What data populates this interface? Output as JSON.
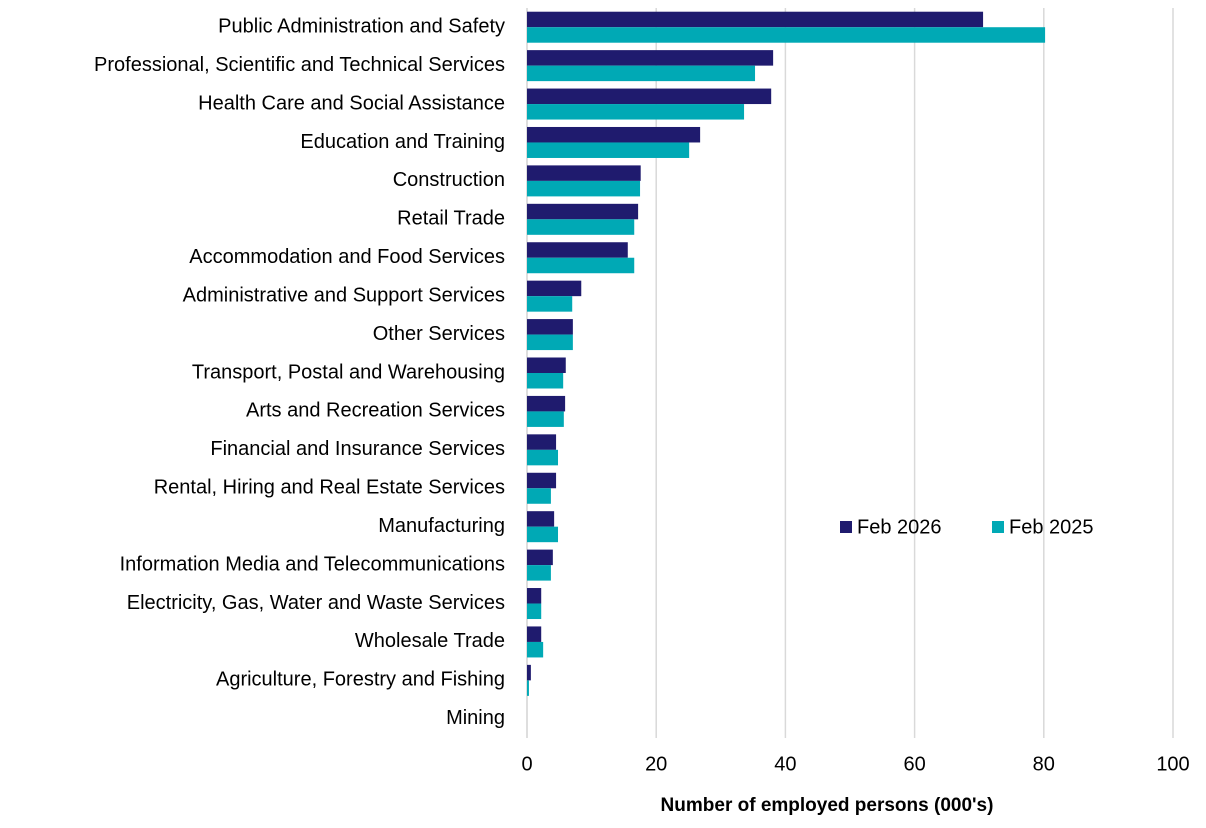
{
  "chart_data": {
    "type": "hbar",
    "x_label": "Number of employed persons (000's)",
    "categories": [
      "Public Administration and Safety",
      "Professional, Scientific and Technical Services",
      "Health Care and Social Assistance",
      "Education and Training",
      "Construction",
      "Retail Trade",
      "Accommodation and Food Services",
      "Administrative and Support Services",
      "Other Services",
      "Transport, Postal and Warehousing",
      "Arts and Recreation Services",
      "Financial and Insurance Services",
      "Rental, Hiring and Real Estate Services",
      "Manufacturing",
      "Information Media and Telecommunications",
      "Electricity, Gas, Water and Waste Services",
      "Wholesale Trade",
      "Agriculture, Forestry and Fishing",
      "Mining"
    ],
    "series": [
      {
        "name": "Feb 2026",
        "color": "#1f1b6e",
        "values": [
          70.6,
          38.1,
          37.8,
          26.8,
          17.6,
          17.2,
          15.6,
          8.4,
          7.1,
          6.0,
          5.9,
          4.5,
          4.5,
          4.2,
          4.0,
          2.2,
          2.2,
          0.6,
          0
        ]
      },
      {
        "name": "Feb 2025",
        "color": "#00a9b5",
        "values": [
          80.2,
          35.3,
          33.6,
          25.1,
          17.5,
          16.6,
          16.6,
          7.0,
          7.1,
          5.6,
          5.7,
          4.8,
          3.7,
          4.8,
          3.7,
          2.2,
          2.5,
          0.3,
          0
        ]
      }
    ],
    "xlim": [
      0,
      100
    ],
    "xticks": [
      0,
      20,
      40,
      60,
      80,
      100
    ],
    "grid": true
  }
}
